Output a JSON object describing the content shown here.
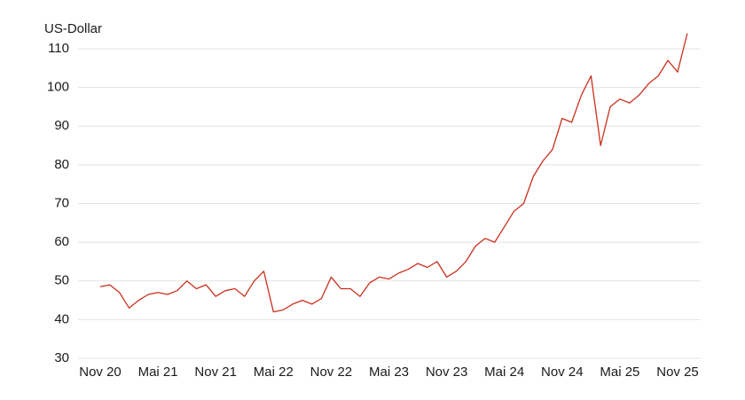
{
  "chart_data": {
    "type": "line",
    "y_label": "US-Dollar",
    "categories": [
      "Nov 20",
      null,
      null,
      null,
      null,
      null,
      "Mai 21",
      null,
      null,
      null,
      null,
      null,
      "Nov 21",
      null,
      null,
      null,
      null,
      null,
      "Mai 22",
      null,
      null,
      null,
      null,
      null,
      "Nov 22",
      null,
      null,
      null,
      null,
      null,
      "Mai 23",
      null,
      null,
      null,
      null,
      null,
      "Nov 23",
      null,
      null,
      null,
      null,
      null,
      "Mai 24",
      null,
      null,
      null,
      null,
      null,
      "Nov 24",
      null,
      null,
      null,
      null,
      null,
      "Mai 25",
      null,
      null,
      null,
      null,
      null,
      "Nov 25",
      null
    ],
    "series": [
      {
        "name": "US-Dollar",
        "color": "#c8311e",
        "values": [
          48.5,
          49,
          47,
          43,
          45,
          46.5,
          47,
          46.5,
          47.5,
          50,
          48,
          49,
          46,
          47.5,
          48,
          46,
          50,
          52.5,
          42,
          42.5,
          44,
          45,
          44,
          45.5,
          51,
          48,
          48,
          46,
          49.5,
          51,
          50.5,
          52,
          53,
          54.5,
          53.5,
          55,
          51,
          52.5,
          55,
          59,
          61,
          60,
          64,
          68,
          70,
          77,
          81,
          84,
          92,
          91,
          98,
          103,
          85,
          95,
          97,
          96,
          98,
          101,
          103,
          107,
          104,
          114
        ]
      }
    ],
    "ylim": [
      30,
      115
    ],
    "yticks": [
      30,
      40,
      50,
      60,
      70,
      80,
      90,
      100,
      110
    ],
    "grid": true
  }
}
